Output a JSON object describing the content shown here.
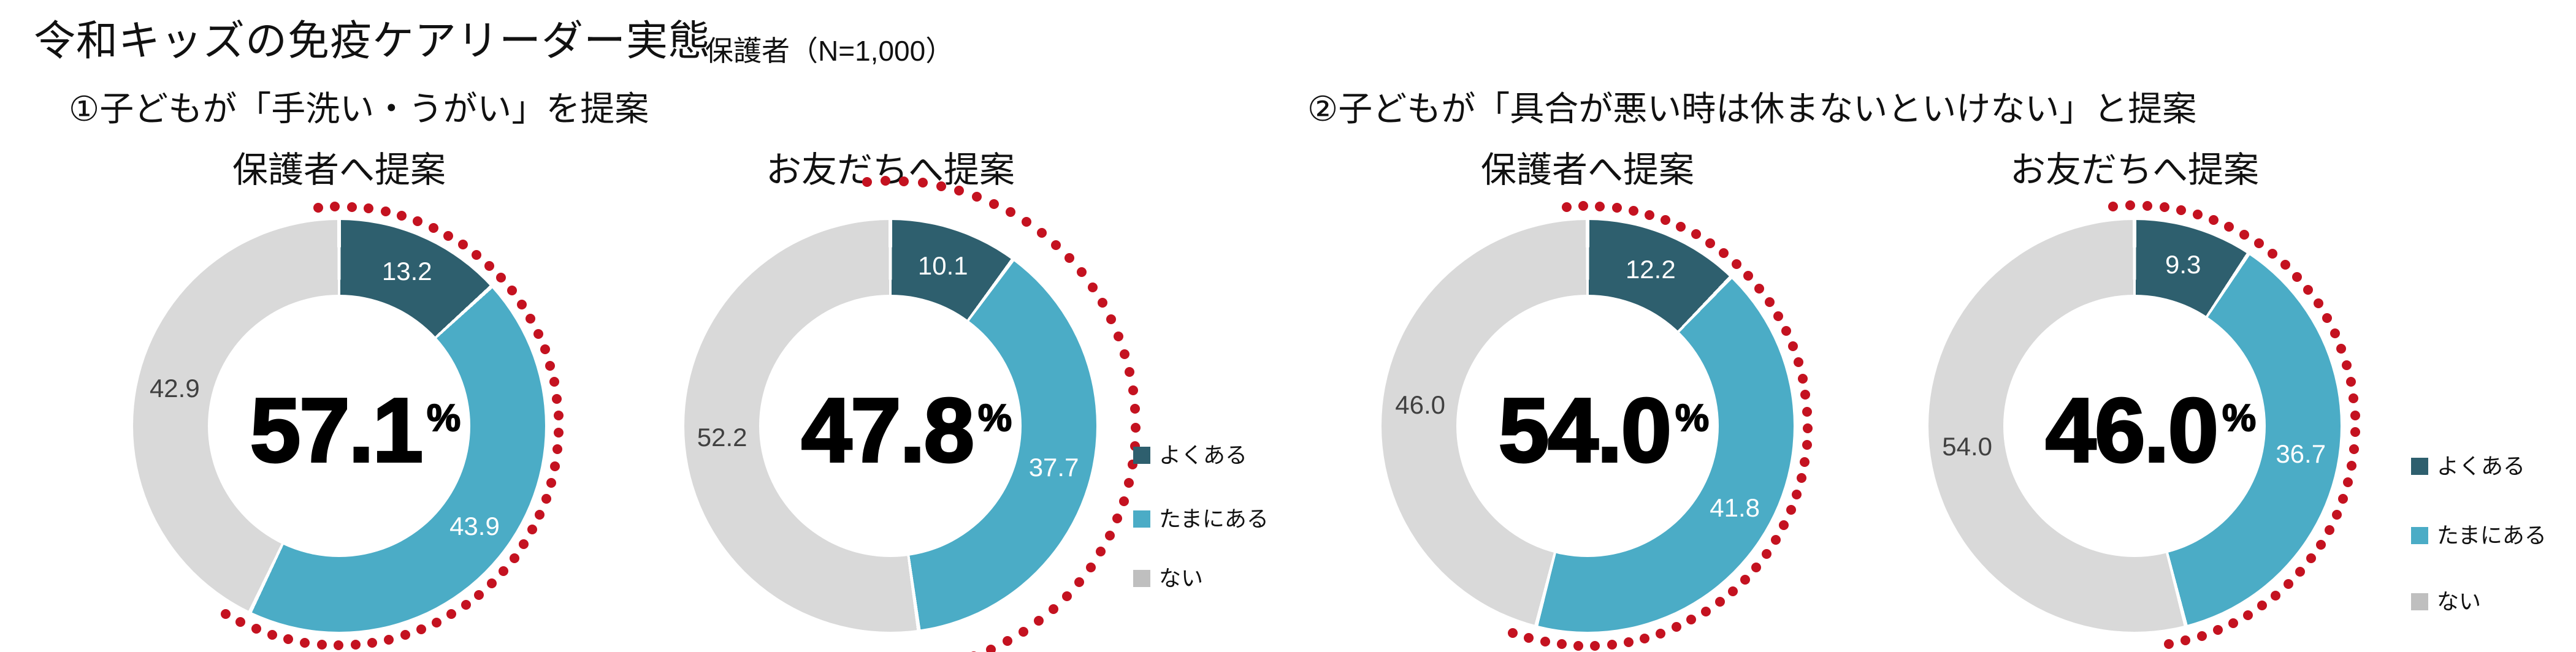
{
  "header": {
    "title": "令和キッズの免疫ケアリーダー実態",
    "sample": "保護者（N=1,000）"
  },
  "sections": [
    {
      "heading": "①子どもが「手洗い・うがい」を提案"
    },
    {
      "heading": "②子どもが「具合が悪い時は休まないといけない」と提案"
    }
  ],
  "legend": {
    "position": "right",
    "items": [
      {
        "key": "often",
        "label": "よくある",
        "color": "#2E5F6E"
      },
      {
        "key": "sometimes",
        "label": "たまにある",
        "color": "#4BACC6"
      },
      {
        "key": "never",
        "label": "ない",
        "color": "#BFBFBF"
      }
    ]
  },
  "colors": {
    "often": "#2E5F6E",
    "sometimes": "#4BACC6",
    "never": "#D9D9D9",
    "highlight_dots": "#C41220",
    "label_on_gray": "#404040",
    "label_on_color": "#FFFFFF"
  },
  "chart_data": [
    {
      "type": "pie",
      "donut": true,
      "section": "①子どもが「手洗い・うがい」を提案",
      "title": "保護者へ提案",
      "categories": [
        "よくある",
        "たまにある",
        "ない"
      ],
      "values": [
        13.2,
        43.9,
        42.9
      ],
      "center_value": "57.1",
      "center_unit": "%",
      "highlighted_total_percent": 57.1,
      "highlight_style": "red-dotted-arc",
      "legend_visible": false
    },
    {
      "type": "pie",
      "donut": true,
      "section": "①子どもが「手洗い・うがい」を提案",
      "title": "お友だちへ提案",
      "categories": [
        "よくある",
        "たまにある",
        "ない"
      ],
      "values": [
        10.1,
        37.7,
        52.2
      ],
      "center_value": "47.8",
      "center_unit": "%",
      "highlighted_total_percent": 47.8,
      "highlight_style": "red-dotted-arc",
      "legend_visible": true
    },
    {
      "type": "pie",
      "donut": true,
      "section": "②子どもが「具合が悪い時は休まないといけない」と提案",
      "title": "保護者へ提案",
      "categories": [
        "よくある",
        "たまにある",
        "ない"
      ],
      "values": [
        12.2,
        41.8,
        46.0
      ],
      "center_value": "54.0",
      "center_unit": "%",
      "highlighted_total_percent": 54.0,
      "highlight_style": "red-dotted-arc",
      "legend_visible": false
    },
    {
      "type": "pie",
      "donut": true,
      "section": "②子どもが「具合が悪い時は休まないといけない」と提案",
      "title": "お友だちへ提案",
      "categories": [
        "よくある",
        "たまにある",
        "ない"
      ],
      "values": [
        9.3,
        36.7,
        54.0
      ],
      "center_value": "46.0",
      "center_unit": "%",
      "highlighted_total_percent": 46.0,
      "highlight_style": "red-dotted-arc",
      "legend_visible": true
    }
  ]
}
